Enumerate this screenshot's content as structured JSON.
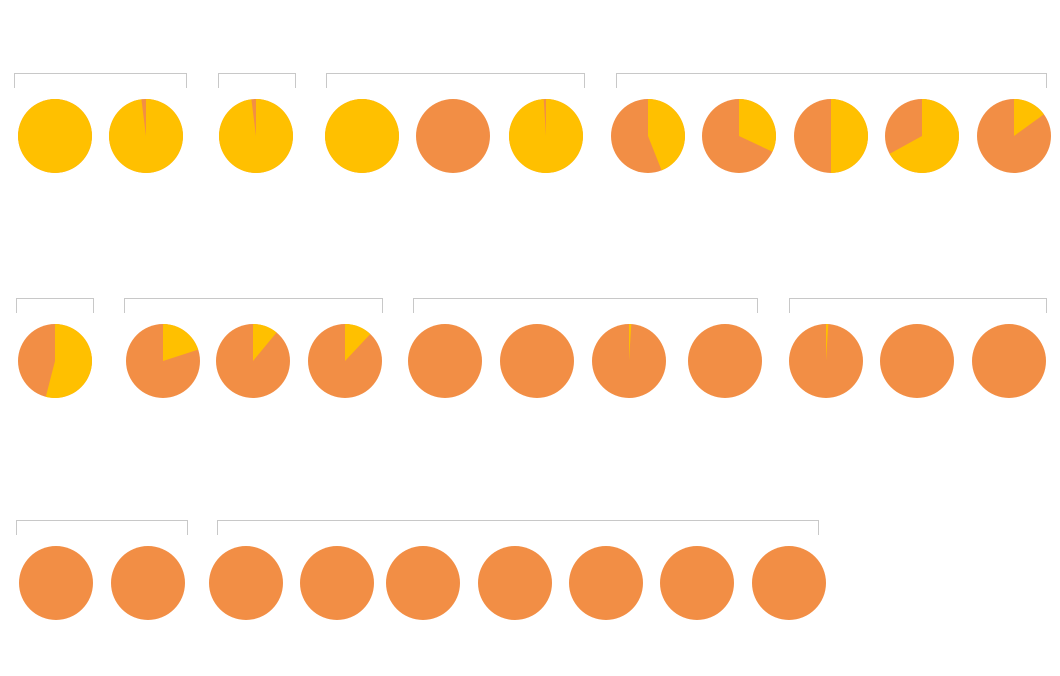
{
  "chart_data": [
    {
      "type": "pie",
      "values": [
        100,
        98
      ],
      "colors": [
        "#ffc000",
        "#f28e45"
      ]
    },
    {
      "type": "pie",
      "values": [
        98
      ],
      "colors": [
        "#ffc000",
        "#f28e45"
      ]
    },
    {
      "type": "pie",
      "values": [
        100,
        0,
        99
      ],
      "colors": [
        "#ffc000",
        "#f28e45"
      ]
    },
    {
      "type": "pie",
      "values": [
        44,
        32,
        50,
        67,
        15
      ],
      "colors": [
        "#ffc000",
        "#f28e45"
      ]
    },
    {
      "type": "pie",
      "values": [
        54
      ],
      "colors": [
        "#ffc000",
        "#f28e45"
      ]
    },
    {
      "type": "pie",
      "values": [
        20,
        11,
        12
      ],
      "colors": [
        "#ffc000",
        "#f28e45"
      ]
    },
    {
      "type": "pie",
      "values": [
        0,
        0,
        1,
        0
      ],
      "colors": [
        "#ffc000",
        "#f28e45"
      ]
    },
    {
      "type": "pie",
      "values": [
        1,
        0,
        0
      ],
      "colors": [
        "#ffc000",
        "#f28e45"
      ]
    },
    {
      "type": "pie",
      "values": [
        0,
        0
      ],
      "colors": [
        "#ffc000",
        "#f28e45"
      ]
    },
    {
      "type": "pie",
      "values": [
        0,
        0,
        0,
        0,
        0,
        0,
        0
      ],
      "colors": [
        "#ffc000",
        "#f28e45"
      ]
    }
  ]
}
